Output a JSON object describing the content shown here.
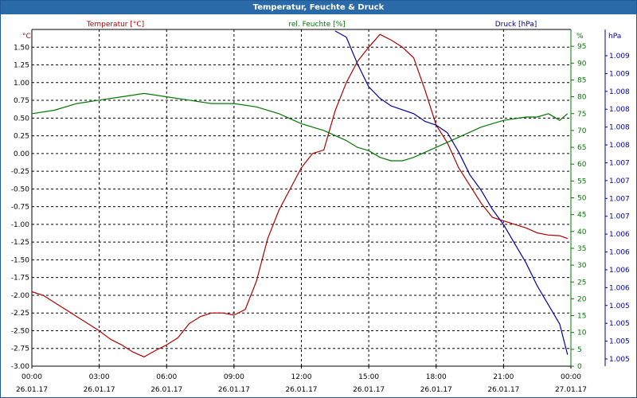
{
  "window": {
    "title": "Temperatur, Feuchte & Druck"
  },
  "colors": {
    "temperature": "#b00000",
    "humidity": "#007800",
    "pressure": "#0000a0",
    "grid": "#000000",
    "axis_text": "#000000"
  },
  "chart_data": {
    "type": "line",
    "title": "Temperatur, Feuchte & Druck",
    "grid": true,
    "x_ticks": [
      {
        "time": "00:00",
        "date": "26.01.17"
      },
      {
        "time": "03:00",
        "date": "26.01.17"
      },
      {
        "time": "06:00",
        "date": "26.01.17"
      },
      {
        "time": "09:00",
        "date": "26.01.17"
      },
      {
        "time": "12:00",
        "date": "26.01.17"
      },
      {
        "time": "15:00",
        "date": "26.01.17"
      },
      {
        "time": "18:00",
        "date": "26.01.17"
      },
      {
        "time": "21:00",
        "date": "26.01.17"
      },
      {
        "time": "00:00",
        "date": "27.01.17"
      }
    ],
    "axes": {
      "temperature": {
        "label": "Temperatur [°C]",
        "unit": "°C",
        "range": [
          -3.0,
          1.75
        ],
        "ticks": [
          "1.50",
          "1.25",
          "1.00",
          "0.75",
          "0.50",
          "0.25",
          "0.00",
          "-0.25",
          "-0.50",
          "-0.75",
          "-1.00",
          "-1.25",
          "-1.50",
          "-1.75",
          "-2.00",
          "-2.25",
          "-2.50",
          "-2.75",
          "-3.00"
        ]
      },
      "humidity": {
        "label": "rel. Feuchte [%]",
        "unit": "%",
        "range": [
          0,
          100
        ],
        "ticks": [
          "95",
          "90",
          "85",
          "80",
          "75",
          "70",
          "65",
          "60",
          "55",
          "50",
          "45",
          "40",
          "35",
          "30",
          "25",
          "20",
          "15",
          "10",
          "5",
          "0"
        ]
      },
      "pressure": {
        "label": "Druck [hPa]",
        "unit": "hPa",
        "range": [
          1004.8,
          1009.2
        ],
        "ticks": [
          "1.009",
          "1.009",
          "1.008",
          "1.008",
          "1.008",
          "1.008",
          "1.007",
          "1.007",
          "1.007",
          "1.007",
          "1.006",
          "1.006",
          "1.006",
          "1.006",
          "1.005",
          "1.005",
          "1.005",
          "1.005"
        ]
      }
    },
    "series": [
      {
        "name": "Temperatur [°C]",
        "axis": "temperature",
        "color": "#b00000",
        "x": [
          0,
          0.5,
          1,
          1.5,
          2,
          2.5,
          3,
          3.5,
          4,
          4.5,
          5,
          5.5,
          6,
          6.5,
          7,
          7.5,
          8,
          8.5,
          9,
          9.5,
          10,
          10.5,
          11,
          11.5,
          12,
          12.5,
          13,
          13.5,
          14,
          14.5,
          15,
          15.5,
          16,
          16.5,
          17,
          17.5,
          18,
          18.5,
          19,
          19.5,
          20,
          20.5,
          21,
          21.5,
          22,
          22.5,
          23,
          23.5,
          23.85
        ],
        "values": [
          -1.95,
          -2.0,
          -2.1,
          -2.2,
          -2.3,
          -2.4,
          -2.5,
          -2.62,
          -2.7,
          -2.8,
          -2.87,
          -2.78,
          -2.7,
          -2.6,
          -2.4,
          -2.3,
          -2.25,
          -2.25,
          -2.28,
          -2.2,
          -1.8,
          -1.2,
          -0.8,
          -0.5,
          -0.2,
          0.0,
          0.05,
          0.6,
          1.0,
          1.3,
          1.5,
          1.68,
          1.6,
          1.5,
          1.35,
          0.9,
          0.4,
          0.15,
          -0.2,
          -0.45,
          -0.7,
          -0.9,
          -0.95,
          -1.0,
          -1.05,
          -1.12,
          -1.15,
          -1.16,
          -1.2
        ]
      },
      {
        "name": "rel. Feuchte [%]",
        "axis": "humidity",
        "color": "#007800",
        "x": [
          0,
          1,
          2,
          3,
          4,
          5,
          6,
          7,
          8,
          9,
          10,
          11,
          12,
          12.5,
          13,
          14,
          14.5,
          15,
          15.5,
          16,
          16.5,
          17,
          18,
          19,
          20,
          21,
          22,
          22.5,
          23,
          23.5,
          23.85
        ],
        "values": [
          75,
          76,
          78,
          79,
          80,
          81,
          80,
          79,
          78,
          78,
          77,
          75,
          72,
          71,
          70,
          67,
          65,
          64,
          62,
          61,
          61,
          62,
          65,
          68,
          71,
          73,
          74,
          74,
          75,
          73,
          75
        ]
      },
      {
        "name": "Druck [hPa]",
        "axis": "pressure",
        "color": "#0000a0",
        "x": [
          13.5,
          14,
          14.5,
          15,
          15.5,
          16,
          16.5,
          17,
          17.5,
          18,
          18.5,
          19,
          19.5,
          20,
          20.5,
          21,
          21.5,
          22,
          22.5,
          23,
          23.5,
          23.85
        ],
        "values": [
          1009.18,
          1009.1,
          1008.75,
          1008.45,
          1008.3,
          1008.2,
          1008.15,
          1008.1,
          1008.0,
          1007.95,
          1007.85,
          1007.6,
          1007.3,
          1007.1,
          1006.85,
          1006.65,
          1006.4,
          1006.15,
          1005.85,
          1005.6,
          1005.35,
          1004.95
        ]
      }
    ]
  }
}
